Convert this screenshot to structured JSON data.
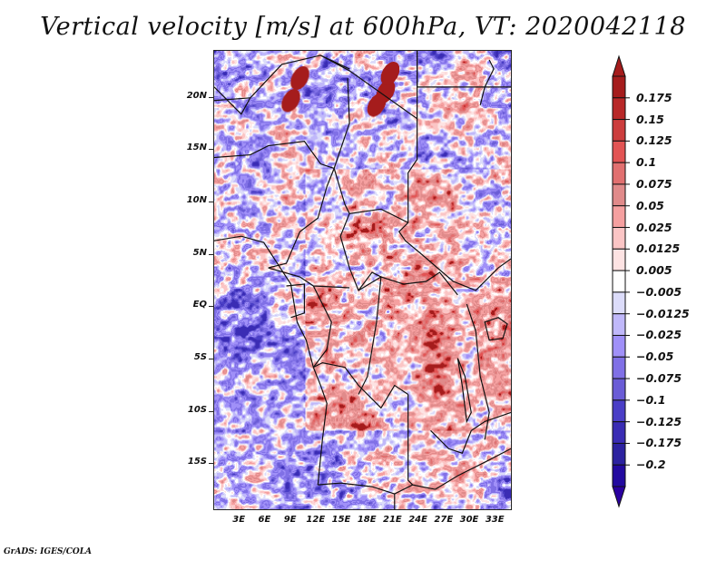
{
  "title": "Vertical velocity [m/s] at 600hPa, VT: 2020042118",
  "credit": "GrADS: IGES/COLA",
  "map": {
    "variable": "Vertical velocity",
    "units": "m/s",
    "level": "600hPa",
    "valid_time": "2020042118",
    "lon_range": [
      0,
      35
    ],
    "lat_range": [
      -19.5,
      24.5
    ],
    "y_axis_labels": [
      {
        "label": "20N",
        "lat": 20
      },
      {
        "label": "15N",
        "lat": 15
      },
      {
        "label": "10N",
        "lat": 10
      },
      {
        "label": "5N",
        "lat": 5
      },
      {
        "label": "EQ",
        "lat": 0
      },
      {
        "label": "5S",
        "lat": -5
      },
      {
        "label": "10S",
        "lat": -10
      },
      {
        "label": "15S",
        "lat": -15
      }
    ],
    "x_axis_labels": [
      {
        "label": "3E",
        "lon": 3
      },
      {
        "label": "6E",
        "lon": 6
      },
      {
        "label": "9E",
        "lon": 9
      },
      {
        "label": "12E",
        "lon": 12
      },
      {
        "label": "15E",
        "lon": 15
      },
      {
        "label": "18E",
        "lon": 18
      },
      {
        "label": "21E",
        "lon": 21
      },
      {
        "label": "24E",
        "lon": 24
      },
      {
        "label": "27E",
        "lon": 27
      },
      {
        "label": "30E",
        "lon": 30
      },
      {
        "label": "33E",
        "lon": 33
      }
    ]
  },
  "colorbar": {
    "levels": [
      "0.175",
      "0.15",
      "0.125",
      "0.1",
      "0.075",
      "0.05",
      "0.025",
      "0.0125",
      "0.005",
      "−0.005",
      "−0.0125",
      "−0.025",
      "−0.05",
      "−0.075",
      "−0.1",
      "−0.125",
      "−0.175",
      "−0.2"
    ],
    "colors": [
      "#a51c1c",
      "#b82828",
      "#cc3d3d",
      "#e25454",
      "#e17070",
      "#e08a8a",
      "#f5a0a0",
      "#fbc5c5",
      "#fde3e3",
      "#ffffff",
      "#dcdcfa",
      "#c0b8fa",
      "#a090f8",
      "#8070e6",
      "#6a5cd6",
      "#4a3ec6",
      "#3a2cb4",
      "#2c22a0",
      "#230aa0"
    ],
    "top_arrow_color": "#a51c1c",
    "bottom_arrow_color": "#2a00a0"
  }
}
